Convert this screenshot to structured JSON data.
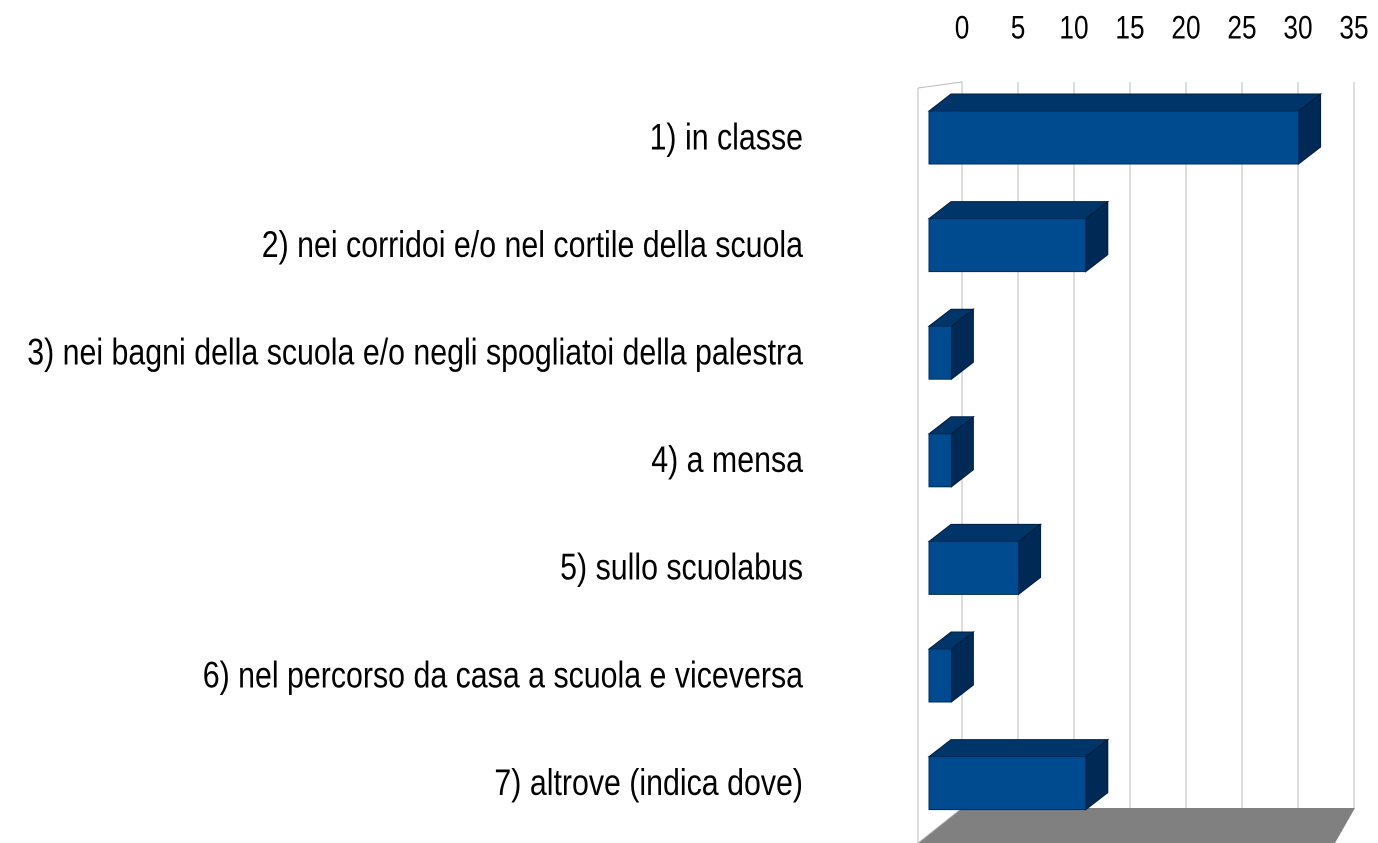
{
  "chart_data": {
    "type": "bar3d",
    "categories": [
      "1) in classe",
      "2) nei corridoi e/o nel cortile della scuola",
      "3) nei bagni della scuola e/o negli spogliatoi della palestra",
      "4) a mensa",
      "5) sullo scuolabus",
      "6) nel percorso da casa a scuola e viceversa",
      "7) altrove (indica dove)"
    ],
    "values": [
      33,
      14,
      2,
      2,
      8,
      2,
      14
    ],
    "color": "#004a8f",
    "xlim": [
      0,
      35
    ],
    "xticks": [
      0,
      5,
      10,
      15,
      20,
      25,
      30,
      35
    ],
    "grid": true
  }
}
